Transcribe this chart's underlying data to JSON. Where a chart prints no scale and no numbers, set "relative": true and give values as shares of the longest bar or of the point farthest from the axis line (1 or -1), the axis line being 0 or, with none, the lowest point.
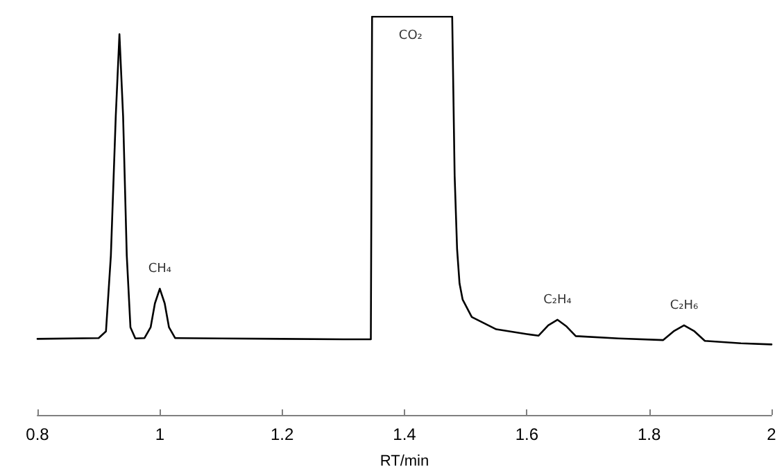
{
  "chart_data": {
    "type": "line",
    "relative": true,
    "xlabel": "RT/min",
    "xlim": [
      0.8,
      2
    ],
    "xticks": [
      0.8,
      1,
      1.2,
      1.4,
      1.6,
      1.8,
      2
    ],
    "tick_labels": "x",
    "marker": "none",
    "line_style": "solid",
    "series": [
      {
        "color": "#000000",
        "x": [
          0.8,
          0.9,
          0.912,
          0.92,
          0.928,
          0.934,
          0.94,
          0.946,
          0.952,
          0.96,
          0.975,
          0.985,
          0.992,
          1.0,
          1.008,
          1.015,
          1.025,
          1.1,
          1.2,
          1.3,
          1.345,
          1.347,
          1.478,
          1.482,
          1.486,
          1.49,
          1.495,
          1.51,
          1.55,
          1.6,
          1.619,
          1.635,
          1.65,
          1.665,
          1.68,
          1.75,
          1.823,
          1.84,
          1.857,
          1.874,
          1.891,
          1.95,
          2.0
        ],
        "values": [
          0.191,
          0.193,
          0.21,
          0.4,
          0.75,
          0.956,
          0.75,
          0.4,
          0.22,
          0.192,
          0.193,
          0.22,
          0.28,
          0.317,
          0.28,
          0.22,
          0.193,
          0.192,
          0.191,
          0.19,
          0.19,
          1,
          1,
          0.6,
          0.416,
          0.33,
          0.29,
          0.246,
          0.215,
          0.203,
          0.199,
          0.225,
          0.239,
          0.222,
          0.198,
          0.192,
          0.188,
          0.21,
          0.225,
          0.21,
          0.186,
          0.18,
          0.177
        ]
      }
    ],
    "annotations": [
      {
        "text": "CH₄",
        "x": 1.0,
        "y": 0.317
      },
      {
        "text": "CO₂",
        "x": 1.41,
        "y": 1
      },
      {
        "text": "C₂H₄",
        "x": 1.65,
        "y": 0.239
      },
      {
        "text": "C₂H₆",
        "x": 1.857,
        "y": 0.225
      }
    ]
  }
}
